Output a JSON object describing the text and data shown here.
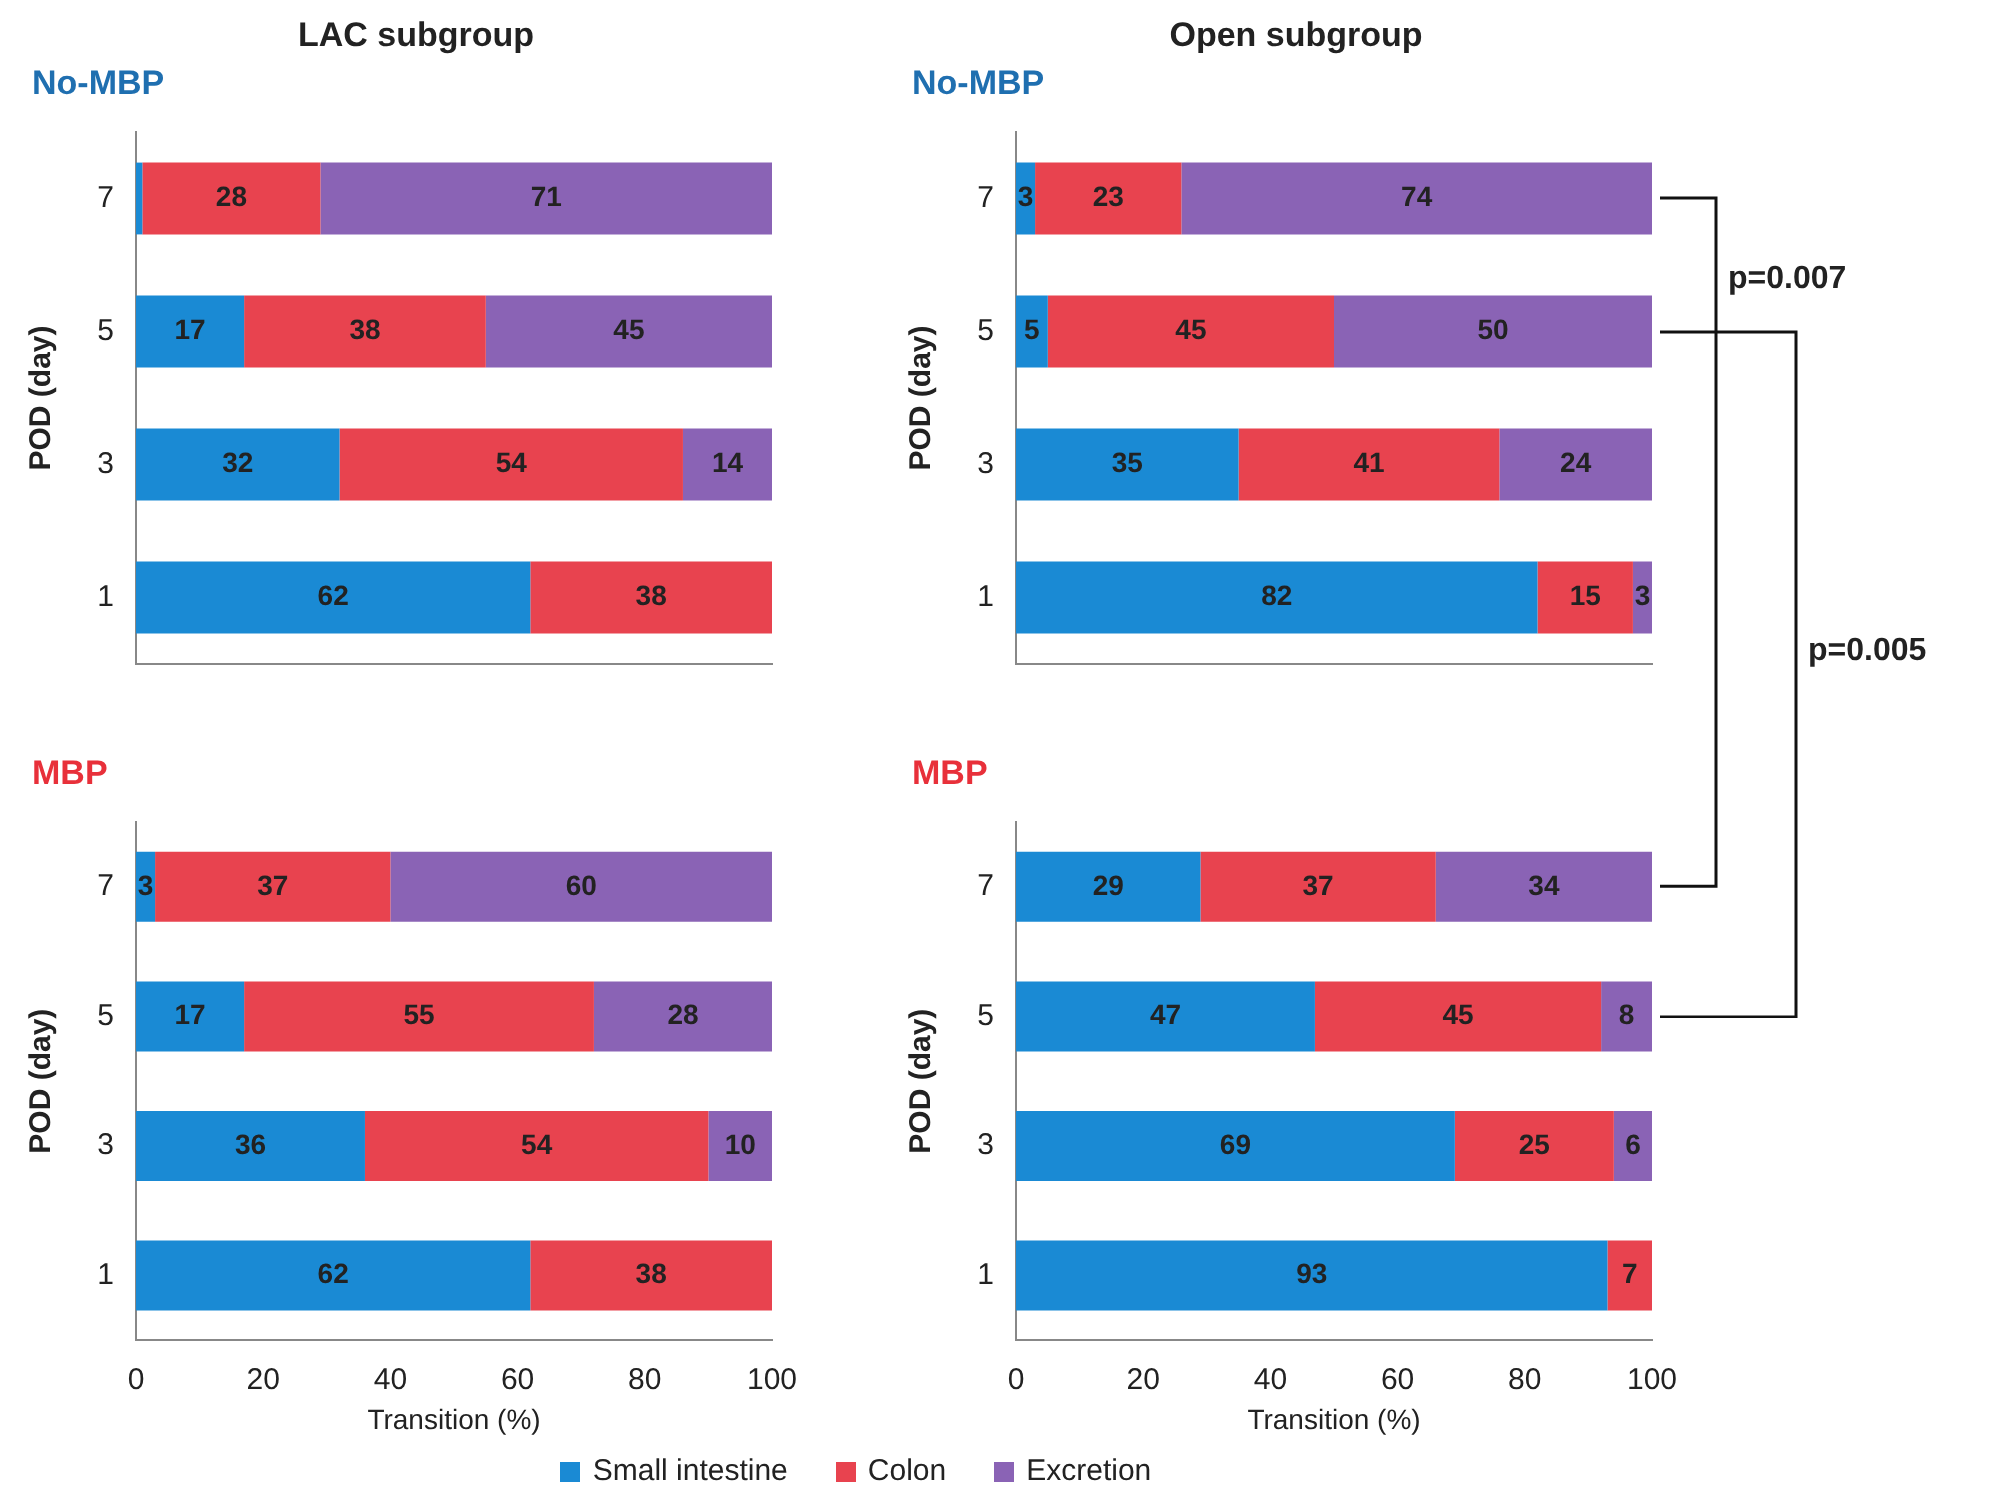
{
  "chart_data": [
    {
      "type": "bar",
      "orientation": "horizontal",
      "stacked": true,
      "title": "LAC subgroup",
      "subtitle": "No-MBP",
      "ylabel": "POD (day)",
      "categories": [
        "7",
        "5",
        "3",
        "1"
      ],
      "xlim": [
        0,
        100
      ],
      "xticks": [
        0,
        20,
        40,
        60,
        80,
        100
      ],
      "tick_labels": "y",
      "grid": false,
      "legend": false,
      "series": [
        {
          "color": "#1a8ad4",
          "values": [
            1,
            17,
            32,
            62
          ],
          "value_labels": [
            null,
            "17",
            "32",
            "62"
          ]
        },
        {
          "color": "#e8434f",
          "values": [
            28,
            38,
            54,
            38
          ],
          "value_labels": [
            "28",
            "38",
            "54",
            "38"
          ]
        },
        {
          "color": "#8a63b5",
          "values": [
            71,
            45,
            14,
            0
          ],
          "value_labels": [
            "71",
            "45",
            "14",
            null
          ]
        }
      ]
    },
    {
      "type": "bar",
      "orientation": "horizontal",
      "stacked": true,
      "title": "Open subgroup",
      "subtitle": "No-MBP",
      "ylabel": "POD (day)",
      "categories": [
        "7",
        "5",
        "3",
        "1"
      ],
      "xlim": [
        0,
        100
      ],
      "xticks": [
        0,
        20,
        40,
        60,
        80,
        100
      ],
      "tick_labels": "y",
      "grid": false,
      "legend": false,
      "annotations": [
        "p=0.007",
        "p=0.005"
      ],
      "series": [
        {
          "color": "#1a8ad4",
          "values": [
            3,
            5,
            35,
            82
          ],
          "value_labels": [
            "3",
            "5",
            "35",
            "82"
          ]
        },
        {
          "color": "#e8434f",
          "values": [
            23,
            45,
            41,
            15
          ],
          "value_labels": [
            "23",
            "45",
            "41",
            "15"
          ]
        },
        {
          "color": "#8a63b5",
          "values": [
            74,
            50,
            24,
            3
          ],
          "value_labels": [
            "74",
            "50",
            "24",
            "3"
          ]
        }
      ]
    },
    {
      "type": "bar",
      "orientation": "horizontal",
      "stacked": true,
      "subtitle": "MBP",
      "ylabel": "POD (day)",
      "xlabel": "Transition (%)",
      "categories": [
        "7",
        "5",
        "3",
        "1"
      ],
      "xlim": [
        0,
        100
      ],
      "xticks": [
        0,
        20,
        40,
        60,
        80,
        100
      ],
      "grid": false,
      "legend": false,
      "series": [
        {
          "color": "#1a8ad4",
          "values": [
            3,
            17,
            36,
            62
          ],
          "value_labels": [
            "3",
            "17",
            "36",
            "62"
          ]
        },
        {
          "color": "#e8434f",
          "values": [
            37,
            55,
            54,
            38
          ],
          "value_labels": [
            "37",
            "55",
            "54",
            "38"
          ]
        },
        {
          "color": "#8a63b5",
          "values": [
            60,
            28,
            10,
            0
          ],
          "value_labels": [
            "60",
            "28",
            "10",
            null
          ]
        }
      ]
    },
    {
      "type": "bar",
      "orientation": "horizontal",
      "stacked": true,
      "subtitle": "MBP",
      "ylabel": "POD (day)",
      "xlabel": "Transition (%)",
      "categories": [
        "7",
        "5",
        "3",
        "1"
      ],
      "xlim": [
        0,
        100
      ],
      "xticks": [
        0,
        20,
        40,
        60,
        80,
        100
      ],
      "grid": false,
      "legend": "bottom",
      "series": [
        {
          "name": "Small intestine",
          "color": "#1a8ad4",
          "values": [
            29,
            47,
            69,
            93
          ],
          "value_labels": [
            "29",
            "47",
            "69",
            "93"
          ]
        },
        {
          "name": "Colon",
          "color": "#e8434f",
          "values": [
            37,
            45,
            25,
            7
          ],
          "value_labels": [
            "37",
            "45",
            "25",
            "7"
          ]
        },
        {
          "name": "Excretion",
          "color": "#8a63b5",
          "values": [
            34,
            8,
            6,
            0
          ],
          "value_labels": [
            "34",
            "8",
            "6",
            null
          ]
        }
      ]
    }
  ]
}
